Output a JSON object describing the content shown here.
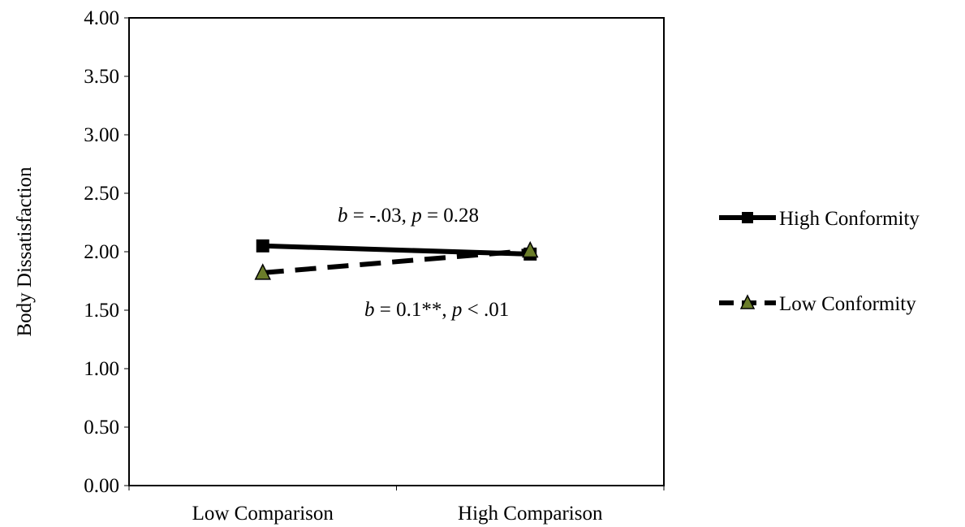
{
  "chart_data": {
    "type": "line",
    "title": "",
    "xlabel": "",
    "ylabel": "Body Dissatisfaction",
    "categories": [
      "Low Comparison",
      "High Comparison"
    ],
    "ylim": [
      0,
      4
    ],
    "yticks": [
      "0.00",
      "0.50",
      "1.00",
      "1.50",
      "2.00",
      "2.50",
      "3.00",
      "3.50",
      "4.00"
    ],
    "grid": false,
    "legend_position": "right",
    "series": [
      {
        "name": "High Conformity",
        "values": [
          2.05,
          1.98
        ],
        "line_style": "solid",
        "marker": "square",
        "color": "#000000",
        "marker_fill": "#000000"
      },
      {
        "name": "Low Conformity",
        "values": [
          1.82,
          2.01
        ],
        "line_style": "dashed",
        "marker": "triangle",
        "color": "#000000",
        "marker_fill": "#6b7d2a"
      }
    ],
    "annotations": [
      {
        "b_label": "b",
        "b_text": " = -.03, ",
        "p_label": "p",
        "p_text": " = 0.28"
      },
      {
        "b_label": "b",
        "b_text": " = 0.1**, ",
        "p_label": "p",
        "p_text": " < .01"
      }
    ]
  }
}
